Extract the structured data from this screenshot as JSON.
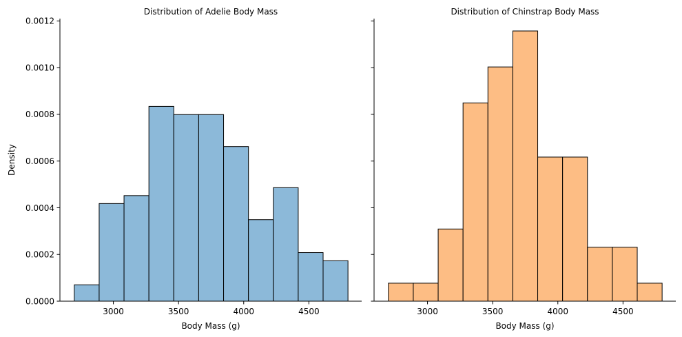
{
  "chart_data": [
    {
      "type": "bar",
      "title": "Distribution of Adelie Body Mass",
      "xlabel": "Body Mass (g)",
      "ylabel": "Density",
      "xlim": [
        2590,
        4905
      ],
      "ylim": [
        0,
        0.00121
      ],
      "xticks": [
        3000,
        3500,
        4000,
        4500
      ],
      "xtick_labels": [
        "3000",
        "3500",
        "4000",
        "4500"
      ],
      "yticks": [
        0,
        0.0002,
        0.0004,
        0.0006,
        0.0008,
        0.001,
        0.0012
      ],
      "ytick_labels": [
        "0.0000",
        "0.0002",
        "0.0004",
        "0.0006",
        "0.0008",
        "0.0010",
        "0.0012"
      ],
      "bin_edges": [
        2700,
        2890.9,
        3081.8,
        3272.7,
        3463.6,
        3654.5,
        3845.5,
        4036.4,
        4227.3,
        4418.2,
        4609.1,
        4800
      ],
      "values": [
        7e-05,
        0.000418,
        0.000452,
        0.000834,
        0.000799,
        0.000799,
        0.000662,
        0.000349,
        0.000486,
        0.000208,
        0.000173
      ],
      "grid": false,
      "color": "#8cb9d9"
    },
    {
      "type": "bar",
      "title": "Distribution of Chinstrap Body Mass",
      "xlabel": "Body Mass (g)",
      "ylabel": "",
      "xlim": [
        2590,
        4905
      ],
      "ylim": [
        0,
        0.00121
      ],
      "xticks": [
        3000,
        3500,
        4000,
        4500
      ],
      "xtick_labels": [
        "3000",
        "3500",
        "4000",
        "4500"
      ],
      "yticks": [
        0,
        0.0002,
        0.0004,
        0.0006,
        0.0008,
        0.001,
        0.0012
      ],
      "ytick_labels": [],
      "bin_edges": [
        2700,
        2890.9,
        3081.8,
        3272.7,
        3463.6,
        3654.5,
        3845.5,
        4036.4,
        4227.3,
        4418.2,
        4609.1,
        4800
      ],
      "values": [
        7.7e-05,
        7.7e-05,
        0.000309,
        0.000849,
        0.001003,
        0.001157,
        0.000617,
        0.000617,
        0.000231,
        0.000231,
        7.7e-05
      ],
      "grid": false,
      "color": "#fdbd84"
    }
  ]
}
